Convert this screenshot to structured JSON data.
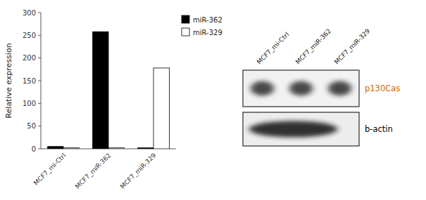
{
  "chart_data": [
    {
      "type": "bar",
      "categories": [
        "MCF7_mi-Ctrl",
        "MCF7_miR-362",
        "MCF7_miR-329"
      ],
      "series": [
        {
          "name": "miR-362",
          "color": "#000000",
          "values": [
            5,
            258,
            2
          ]
        },
        {
          "name": "miR-329",
          "color": "#ffffff",
          "values": [
            2,
            2,
            178
          ]
        }
      ],
      "ylabel": "Relative expression",
      "ylim": [
        0,
        300
      ],
      "yticks": [
        0,
        50,
        100,
        150,
        200,
        250,
        300
      ],
      "grid": false,
      "legend": "upper right"
    },
    {
      "type": "blot",
      "categories": [
        "MCF7_mi-Ctrl",
        "MCF7_miR-362",
        "MCF7_miR-329"
      ],
      "series": [
        {
          "name": "p130Cas",
          "color": "#cc6600"
        },
        {
          "name": "b-actin",
          "color": "#000000"
        }
      ]
    }
  ]
}
